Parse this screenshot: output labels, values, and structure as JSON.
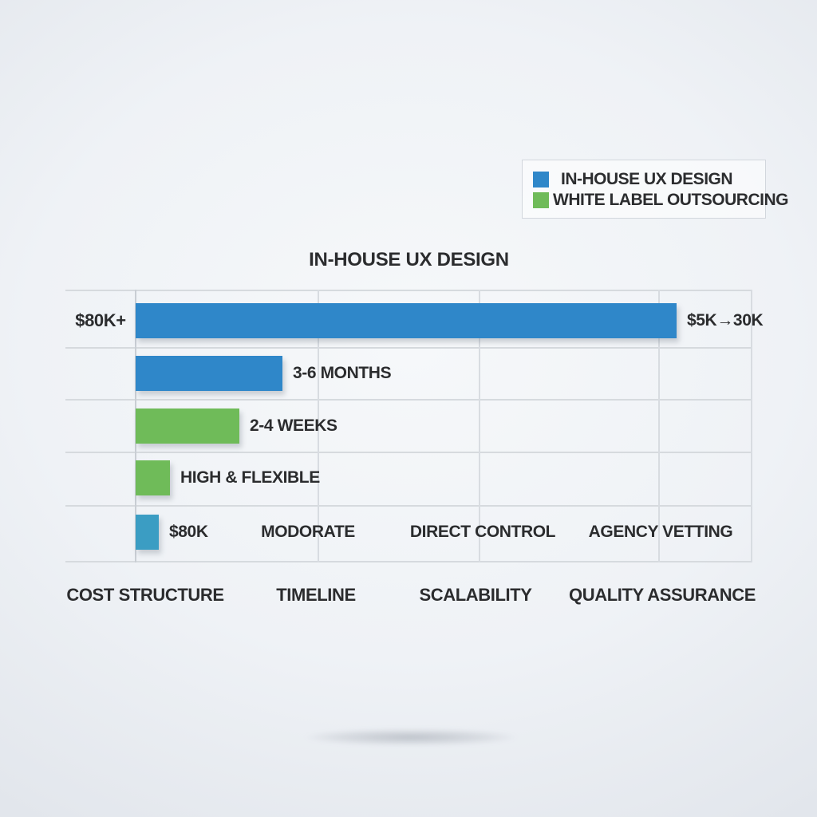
{
  "colors": {
    "inhouse_blue": "#2f87c9",
    "outsourcing_green": "#6fbb59",
    "teal_bar": "#3b9dc3",
    "text": "#2c2d2f",
    "gridline": "#d6dade",
    "background": "#eef1f5"
  },
  "title": "IN-HOUSE UX DESIGN",
  "legend": {
    "items": [
      {
        "label": "IN-HOUSE UX DESIGN",
        "color": "#2f87c9"
      },
      {
        "label": "WHITE LABEL OUTSOURCING",
        "color": "#6fbb59"
      }
    ]
  },
  "chart_data": {
    "type": "bar",
    "orientation": "horizontal",
    "title": "IN-HOUSE UX DESIGN",
    "legend_entries": [
      "IN-HOUSE UX DESIGN",
      "WHITE LABEL OUTSOURCING"
    ],
    "x_categories": [
      "COST STRUCTURE",
      "TIMELINE",
      "SCALABILITY",
      "QUALITY ASSURANCE"
    ],
    "grid": "on",
    "legend_position": "top-right",
    "rows": [
      {
        "color": "#2f87c9",
        "length_pct": 87.5,
        "left_label": "$80K+",
        "value_label": "$5K→30K"
      },
      {
        "color": "#2f87c9",
        "length_pct": 23.7,
        "value_label": "3-6 MONTHS"
      },
      {
        "color": "#6fbb59",
        "length_pct": 16.8,
        "value_label": "2-4 WEEKS"
      },
      {
        "color": "#6fbb59",
        "length_pct": 5.5,
        "value_label": "HIGH & FLEXIBLE"
      },
      {
        "color": "#3b9dc3",
        "length_pct": 3.7,
        "value_label": "$80K",
        "inline_labels": [
          "MODORATE",
          "DIRECT CONTROL",
          "AGENCY VETTING"
        ]
      }
    ]
  }
}
